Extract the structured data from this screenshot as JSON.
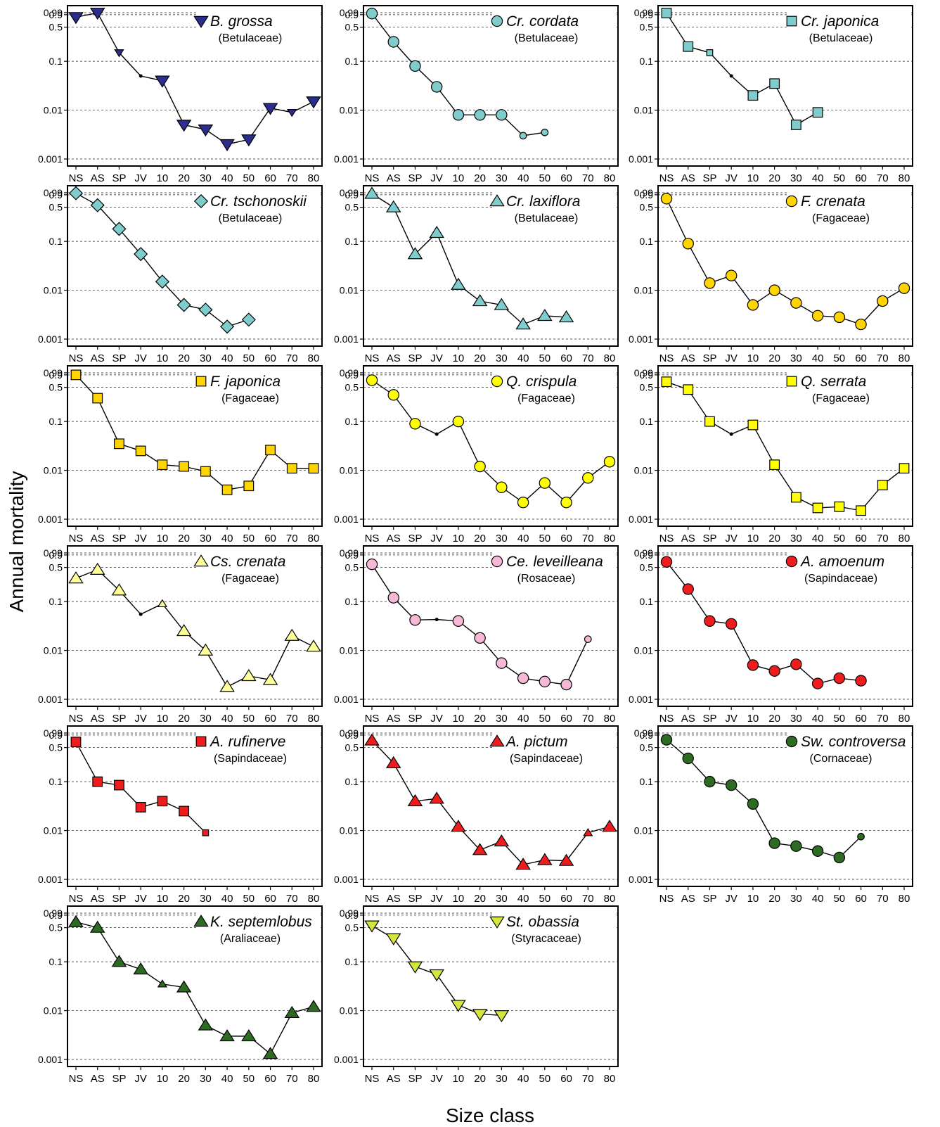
{
  "figure": {
    "ylabel": "Annual mortality",
    "xlabel": "Size class",
    "y_ticks": [
      "0.99",
      "0.9",
      "0.5",
      "0.1",
      "0.01",
      "0.001"
    ],
    "x_ticks": [
      "NS",
      "AS",
      "SP",
      "JV",
      "10",
      "20",
      "30",
      "40",
      "50",
      "60",
      "70",
      "80"
    ]
  },
  "chart_data": [
    {
      "type": "line",
      "species": "B. grossa",
      "family": "(Betulaceae)",
      "marker": "triangle-down",
      "color": "#2b2e8f",
      "values": [
        0.8,
        0.98,
        0.15,
        0.05,
        0.04,
        0.005,
        0.004,
        0.002,
        0.0025,
        0.011,
        0.009,
        0.015
      ],
      "small": [
        false,
        false,
        true,
        true,
        false,
        false,
        false,
        false,
        false,
        false,
        true,
        false
      ]
    },
    {
      "type": "line",
      "species": "Cr. cordata",
      "family": "(Betulaceae)",
      "marker": "circle",
      "color": "#7fcccc",
      "values": [
        0.95,
        0.25,
        0.08,
        0.03,
        0.008,
        0.008,
        0.008,
        0.003,
        0.0035,
        null,
        null,
        null
      ],
      "small": [
        false,
        false,
        false,
        false,
        false,
        false,
        false,
        true,
        true,
        false,
        false,
        false
      ]
    },
    {
      "type": "line",
      "species": "Cr. japonica",
      "family": "(Betulaceae)",
      "marker": "square",
      "color": "#7fcccc",
      "values": [
        0.97,
        0.2,
        0.15,
        0.05,
        0.02,
        0.035,
        0.005,
        0.009,
        null,
        null,
        null,
        null
      ],
      "small": [
        false,
        false,
        true,
        true,
        false,
        false,
        false,
        false,
        false,
        false,
        false,
        false
      ]
    },
    {
      "type": "line",
      "species": "Cr. tschonoskii",
      "family": "(Betulaceae)",
      "marker": "diamond",
      "color": "#7fcccc",
      "values": [
        0.97,
        0.55,
        0.18,
        0.055,
        0.015,
        0.005,
        0.004,
        0.0018,
        0.0025,
        null,
        null,
        null
      ],
      "small": [
        false,
        false,
        false,
        false,
        false,
        false,
        false,
        false,
        false,
        false,
        false,
        false
      ]
    },
    {
      "type": "line",
      "species": "Cr. laxiflora",
      "family": "(Betulaceae)",
      "marker": "triangle-up",
      "color": "#7fcccc",
      "values": [
        0.95,
        0.5,
        0.055,
        0.15,
        0.013,
        0.006,
        0.005,
        0.002,
        0.003,
        0.0028,
        null,
        null
      ],
      "small": [
        false,
        false,
        false,
        false,
        false,
        false,
        false,
        false,
        false,
        false,
        false,
        false
      ]
    },
    {
      "type": "line",
      "species": "F. crenata",
      "family": "(Fagaceae)",
      "marker": "circle",
      "color": "#ffd400",
      "values": [
        0.75,
        0.09,
        0.014,
        0.02,
        0.005,
        0.01,
        0.0055,
        0.003,
        0.0028,
        0.002,
        0.006,
        0.011
      ],
      "small": [
        false,
        false,
        false,
        false,
        false,
        false,
        false,
        false,
        false,
        false,
        false,
        false
      ]
    },
    {
      "type": "line",
      "species": "F. japonica",
      "family": "(Fagaceae)",
      "marker": "square",
      "color": "#ffd400",
      "values": [
        0.9,
        0.3,
        0.035,
        0.025,
        0.013,
        0.012,
        0.0095,
        0.004,
        0.0048,
        0.026,
        0.011,
        0.011
      ],
      "small": [
        false,
        false,
        false,
        false,
        false,
        false,
        false,
        false,
        false,
        false,
        false,
        false
      ]
    },
    {
      "type": "line",
      "species": "Q. crispula",
      "family": "(Fagaceae)",
      "marker": "circle",
      "color": "#ffff00",
      "values": [
        0.7,
        0.35,
        0.09,
        0.055,
        0.1,
        0.012,
        0.0045,
        0.0022,
        0.0055,
        0.0022,
        0.007,
        0.015
      ],
      "small": [
        false,
        false,
        false,
        true,
        false,
        false,
        false,
        false,
        false,
        false,
        false,
        false
      ]
    },
    {
      "type": "line",
      "species": "Q. serrata",
      "family": "(Fagaceae)",
      "marker": "square",
      "color": "#ffff00",
      "values": [
        0.65,
        0.45,
        0.1,
        0.055,
        0.085,
        0.013,
        0.0028,
        0.0017,
        0.0018,
        0.0015,
        0.005,
        0.011
      ],
      "small": [
        false,
        false,
        false,
        true,
        false,
        false,
        false,
        false,
        false,
        false,
        false,
        false
      ]
    },
    {
      "type": "line",
      "species": "Cs. crenata",
      "family": "(Fagaceae)",
      "marker": "triangle-up",
      "color": "#ffff99",
      "values": [
        0.3,
        0.45,
        0.17,
        0.055,
        0.09,
        0.025,
        0.01,
        0.0018,
        0.003,
        0.0025,
        0.02,
        0.012
      ],
      "small": [
        false,
        false,
        false,
        true,
        true,
        false,
        false,
        false,
        false,
        false,
        false,
        false
      ]
    },
    {
      "type": "line",
      "species": "Ce. leveilleana",
      "family": "(Rosaceae)",
      "marker": "circle",
      "color": "#f7b8d8",
      "values": [
        0.58,
        0.12,
        0.042,
        0.043,
        0.04,
        0.018,
        0.0055,
        0.0027,
        0.0023,
        0.002,
        0.017,
        null
      ],
      "small": [
        false,
        false,
        false,
        true,
        false,
        false,
        false,
        false,
        false,
        false,
        true,
        false
      ]
    },
    {
      "type": "line",
      "species": "A. amoenum",
      "family": "(Sapindaceae)",
      "marker": "circle",
      "color": "#ee1c1c",
      "values": [
        0.65,
        0.18,
        0.04,
        0.035,
        0.005,
        0.0038,
        0.0052,
        0.0021,
        0.0027,
        0.0024,
        null,
        null
      ],
      "small": [
        false,
        false,
        false,
        false,
        false,
        false,
        false,
        false,
        false,
        false,
        false,
        false
      ]
    },
    {
      "type": "line",
      "species": "A. rufinerve",
      "family": "(Sapindaceae)",
      "marker": "square",
      "color": "#ee1c1c",
      "values": [
        0.65,
        0.1,
        0.085,
        0.03,
        0.04,
        0.025,
        0.009,
        null,
        null,
        null,
        null,
        null
      ],
      "small": [
        false,
        false,
        false,
        false,
        false,
        false,
        true,
        false,
        false,
        false,
        false,
        false
      ]
    },
    {
      "type": "line",
      "species": "A. pictum",
      "family": "(Sapindaceae)",
      "marker": "triangle-up",
      "color": "#ee1c1c",
      "values": [
        0.7,
        0.24,
        0.04,
        0.045,
        0.012,
        0.004,
        0.006,
        0.002,
        0.0025,
        0.0024,
        0.009,
        0.012
      ],
      "small": [
        false,
        false,
        false,
        false,
        false,
        false,
        false,
        false,
        false,
        false,
        true,
        false
      ]
    },
    {
      "type": "line",
      "species": "Sw. controversa",
      "family": "(Cornaceae)",
      "marker": "circle",
      "color": "#2e6b22",
      "values": [
        0.72,
        0.3,
        0.1,
        0.085,
        0.035,
        0.0055,
        0.0048,
        0.0038,
        0.0028,
        0.0075,
        null,
        null
      ],
      "small": [
        false,
        false,
        false,
        false,
        false,
        false,
        false,
        false,
        false,
        true,
        false,
        false
      ]
    },
    {
      "type": "line",
      "species": "K. septemlobus",
      "family": "(Araliaceae)",
      "marker": "triangle-up",
      "color": "#2e6b22",
      "values": [
        0.65,
        0.5,
        0.1,
        0.07,
        0.035,
        0.03,
        0.005,
        0.003,
        0.003,
        0.0013,
        0.009,
        0.012
      ],
      "small": [
        false,
        false,
        false,
        false,
        true,
        false,
        false,
        false,
        false,
        false,
        false,
        false
      ]
    },
    {
      "type": "line",
      "species": "St. obassia",
      "family": "(Styracaceae)",
      "marker": "triangle-down",
      "color": "#d4e63c",
      "values": [
        0.55,
        0.3,
        0.08,
        0.055,
        0.013,
        0.0085,
        0.008,
        null,
        null,
        null,
        null,
        null
      ],
      "small": [
        false,
        false,
        false,
        false,
        false,
        false,
        false,
        false,
        false,
        false,
        false,
        false
      ]
    }
  ]
}
